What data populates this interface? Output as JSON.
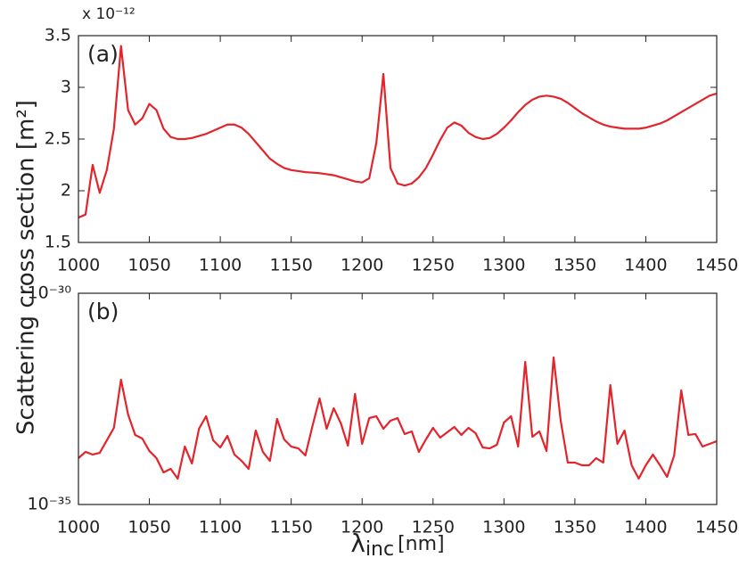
{
  "chart_data": [
    {
      "type": "line",
      "panel_label": "(a)",
      "scale_label": "x 10⁻¹²",
      "ylabel": "Scattering cross section [m²]",
      "xlim": [
        1000,
        1450
      ],
      "xticks": [
        1000,
        1050,
        1100,
        1150,
        1200,
        1250,
        1300,
        1350,
        1400,
        1450
      ],
      "ylim": [
        1.5,
        3.5
      ],
      "yticks": [
        1.5,
        2,
        2.5,
        3,
        3.5
      ],
      "log": false,
      "x": [
        1000,
        1005,
        1010,
        1015,
        1020,
        1025,
        1030,
        1035,
        1040,
        1045,
        1050,
        1055,
        1060,
        1065,
        1070,
        1075,
        1080,
        1085,
        1090,
        1095,
        1100,
        1105,
        1110,
        1115,
        1120,
        1125,
        1130,
        1135,
        1140,
        1145,
        1150,
        1155,
        1160,
        1165,
        1170,
        1175,
        1180,
        1185,
        1190,
        1195,
        1200,
        1205,
        1210,
        1215,
        1220,
        1225,
        1230,
        1235,
        1240,
        1245,
        1250,
        1255,
        1260,
        1265,
        1270,
        1275,
        1280,
        1285,
        1290,
        1295,
        1300,
        1305,
        1310,
        1315,
        1320,
        1325,
        1330,
        1335,
        1340,
        1345,
        1350,
        1355,
        1360,
        1365,
        1370,
        1375,
        1380,
        1385,
        1390,
        1395,
        1400,
        1405,
        1410,
        1415,
        1420,
        1425,
        1430,
        1435,
        1440,
        1445,
        1450
      ],
      "series": [
        {
          "color": "#e3242b",
          "values": [
            1.74,
            1.77,
            2.25,
            1.98,
            2.2,
            2.6,
            3.4,
            2.78,
            2.64,
            2.7,
            2.84,
            2.78,
            2.6,
            2.52,
            2.5,
            2.5,
            2.51,
            2.53,
            2.55,
            2.58,
            2.61,
            2.64,
            2.64,
            2.61,
            2.55,
            2.47,
            2.39,
            2.31,
            2.26,
            2.22,
            2.2,
            2.19,
            2.18,
            2.175,
            2.17,
            2.16,
            2.15,
            2.13,
            2.11,
            2.09,
            2.08,
            2.12,
            2.46,
            3.13,
            2.22,
            2.07,
            2.05,
            2.07,
            2.13,
            2.22,
            2.35,
            2.49,
            2.61,
            2.66,
            2.63,
            2.56,
            2.52,
            2.5,
            2.51,
            2.55,
            2.61,
            2.68,
            2.76,
            2.83,
            2.88,
            2.91,
            2.92,
            2.91,
            2.89,
            2.85,
            2.8,
            2.75,
            2.71,
            2.67,
            2.64,
            2.62,
            2.61,
            2.6,
            2.6,
            2.6,
            2.61,
            2.63,
            2.65,
            2.68,
            2.72,
            2.76,
            2.8,
            2.84,
            2.88,
            2.92,
            2.94
          ]
        }
      ]
    },
    {
      "type": "line",
      "panel_label": "(b)",
      "xlabel": "λ",
      "xlabel_subscript": "inc",
      "xlabel_unit": "[nm]",
      "xlim": [
        1000,
        1450
      ],
      "xticks": [
        1000,
        1050,
        1100,
        1150,
        1200,
        1250,
        1300,
        1350,
        1400,
        1450
      ],
      "ylim": [
        1e-35,
        1e-30
      ],
      "yticks": [
        {
          "value": 1e-35,
          "label": "10⁻³⁵"
        },
        {
          "value": 1e-30,
          "label": "10⁻³⁰"
        }
      ],
      "log": true,
      "x": [
        1000,
        1005,
        1010,
        1015,
        1020,
        1025,
        1030,
        1035,
        1040,
        1045,
        1050,
        1055,
        1060,
        1065,
        1070,
        1075,
        1080,
        1085,
        1090,
        1095,
        1100,
        1105,
        1110,
        1115,
        1120,
        1125,
        1130,
        1135,
        1140,
        1145,
        1150,
        1155,
        1160,
        1165,
        1170,
        1175,
        1180,
        1185,
        1190,
        1195,
        1200,
        1205,
        1210,
        1215,
        1220,
        1225,
        1230,
        1235,
        1240,
        1245,
        1250,
        1255,
        1260,
        1265,
        1270,
        1275,
        1280,
        1285,
        1290,
        1295,
        1300,
        1305,
        1310,
        1315,
        1320,
        1325,
        1330,
        1335,
        1340,
        1345,
        1350,
        1355,
        1360,
        1365,
        1370,
        1375,
        1380,
        1385,
        1390,
        1395,
        1400,
        1405,
        1410,
        1415,
        1420,
        1425,
        1430,
        1435,
        1440,
        1445,
        1450
      ],
      "series": [
        {
          "color": "#e3242b",
          "values": [
            1.25e-34,
            1.76e-34,
            1.52e-34,
            1.67e-34,
            3.3e-34,
            6.52e-34,
            9e-33,
            1.35e-33,
            4.43e-34,
            3.64e-34,
            1.85e-34,
            1.25e-34,
            5.74e-35,
            6.98e-35,
            4.09e-35,
            2.35e-34,
            9.33e-35,
            6.21e-34,
            1.23e-33,
            3.3e-34,
            2.24e-34,
            4.21e-34,
            1.52e-34,
            1.08e-34,
            6.98e-35,
            5.64e-34,
            1.76e-34,
            1.08e-34,
            1.06e-33,
            3.47e-34,
            2.35e-34,
            2.13e-34,
            1.45e-34,
            7.19e-34,
            3.24e-33,
            6.21e-34,
            1.9e-33,
            8.32e-34,
            2.47e-34,
            4.13e-33,
            2.72e-34,
            1.11e-33,
            1.23e-33,
            6.21e-34,
            9.62e-34,
            1.11e-33,
            4.65e-34,
            5.37e-34,
            1.76e-34,
            3.47e-34,
            6.52e-34,
            3.82e-34,
            5.12e-34,
            6.84e-34,
            4.43e-34,
            6.52e-34,
            4.88e-34,
            2.24e-34,
            2.13e-34,
            2.59e-34,
            8.73e-34,
            1.23e-33,
            2.35e-34,
            2.38e-32,
            4.01e-34,
            5.37e-34,
            1.85e-34,
            3.03e-32,
            9.62e-34,
            9.82e-35,
            9.82e-35,
            8.47e-35,
            8.47e-35,
            1.25e-34,
            9.82e-35,
            6.71e-33,
            2.72e-34,
            5.64e-34,
            8.47e-35,
            4.09e-35,
            8.47e-35,
            1.52e-34,
            8.47e-35,
            4.51e-35,
            1.45e-34,
            5.01e-33,
            4.43e-34,
            4.65e-34,
            2.35e-34,
            2.72e-34,
            3.15e-34
          ]
        }
      ]
    }
  ]
}
